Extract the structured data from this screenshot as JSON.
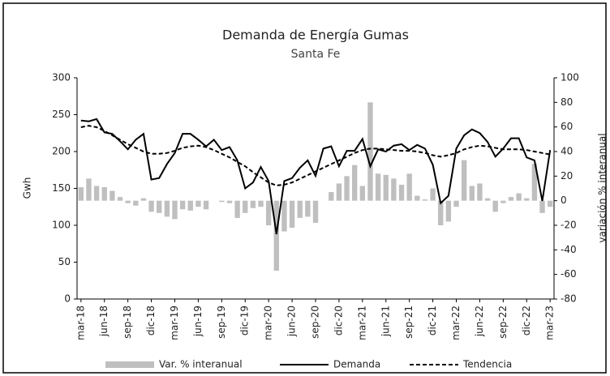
{
  "chart_data": {
    "type": "bar_line",
    "title": "Demanda de Energía Gumas",
    "subtitle": "Santa Fe",
    "y_label": "Gwh",
    "y2_label": "variación % interanual",
    "categories": [
      "mar-18",
      null,
      null,
      "jun-18",
      null,
      null,
      "sep-18",
      null,
      null,
      "dic-18",
      null,
      null,
      "mar-19",
      null,
      null,
      "jun-19",
      null,
      null,
      "sep-19",
      null,
      null,
      "dic-19",
      null,
      null,
      "mar-20",
      null,
      null,
      "jun-20",
      null,
      null,
      "sep-20",
      null,
      null,
      "dic-20",
      null,
      null,
      "mar-21",
      null,
      null,
      "jun-21",
      null,
      null,
      "sep-21",
      null,
      null,
      "dic-21",
      null,
      null,
      "mar-22",
      null,
      null,
      "jun-22",
      null,
      null,
      "sep-22",
      null,
      null,
      "dic-22",
      null,
      null,
      "mar-23"
    ],
    "series": [
      {
        "name": "Var. % interanual",
        "type": "bar",
        "axis": "y2",
        "color": "#bfbfbf",
        "values": [
          11,
          18,
          12,
          11,
          8,
          3,
          -2,
          -4,
          2,
          -9,
          -10,
          -13,
          -15,
          -7,
          -8,
          -5,
          -7,
          0,
          -1,
          -2,
          -14,
          -10,
          -6,
          -5,
          -20,
          -57,
          -25,
          -22,
          -14,
          -13,
          -18,
          0,
          7,
          14,
          20,
          29,
          12,
          80,
          22,
          21,
          18,
          13,
          22,
          4,
          1,
          10,
          -20,
          -17,
          -5,
          33,
          12,
          14,
          2,
          -9,
          -2,
          3,
          6,
          2,
          30,
          -10,
          -5
        ]
      },
      {
        "name": "Demanda",
        "type": "line",
        "axis": "y",
        "color": "#000000",
        "linestyle": "solid",
        "values": [
          242,
          241,
          244,
          226,
          224,
          214,
          203,
          216,
          224,
          162,
          164,
          183,
          198,
          224,
          224,
          216,
          207,
          216,
          202,
          206,
          188,
          150,
          158,
          179,
          160,
          88,
          160,
          164,
          178,
          188,
          167,
          204,
          207,
          180,
          201,
          201,
          217,
          180,
          203,
          200,
          208,
          210,
          202,
          209,
          204,
          182,
          130,
          140,
          204,
          222,
          230,
          225,
          213,
          193,
          204,
          218,
          218,
          192,
          188,
          133,
          202
        ]
      },
      {
        "name": "Tendencia",
        "type": "line",
        "axis": "y",
        "color": "#000000",
        "linestyle": "dashed",
        "values": [
          233,
          235,
          233,
          228,
          222,
          216,
          210,
          205,
          200,
          197,
          197,
          198,
          201,
          205,
          207,
          208,
          206,
          202,
          197,
          192,
          186,
          180,
          172,
          165,
          158,
          154,
          155,
          158,
          163,
          168,
          173,
          178,
          183,
          188,
          193,
          198,
          202,
          204,
          204,
          203,
          202,
          201,
          201,
          200,
          198,
          195,
          193,
          195,
          198,
          203,
          206,
          208,
          207,
          205,
          203,
          203,
          203,
          202,
          200,
          198,
          196
        ]
      }
    ],
    "ylim": [
      0,
      300
    ],
    "yticks": [
      0,
      50,
      100,
      150,
      200,
      250,
      300
    ],
    "y2lim": [
      -80,
      100
    ],
    "y2ticks": [
      -80,
      -60,
      -40,
      -20,
      0,
      20,
      40,
      60,
      80,
      100
    ],
    "grid": false,
    "legend": "bottom"
  }
}
